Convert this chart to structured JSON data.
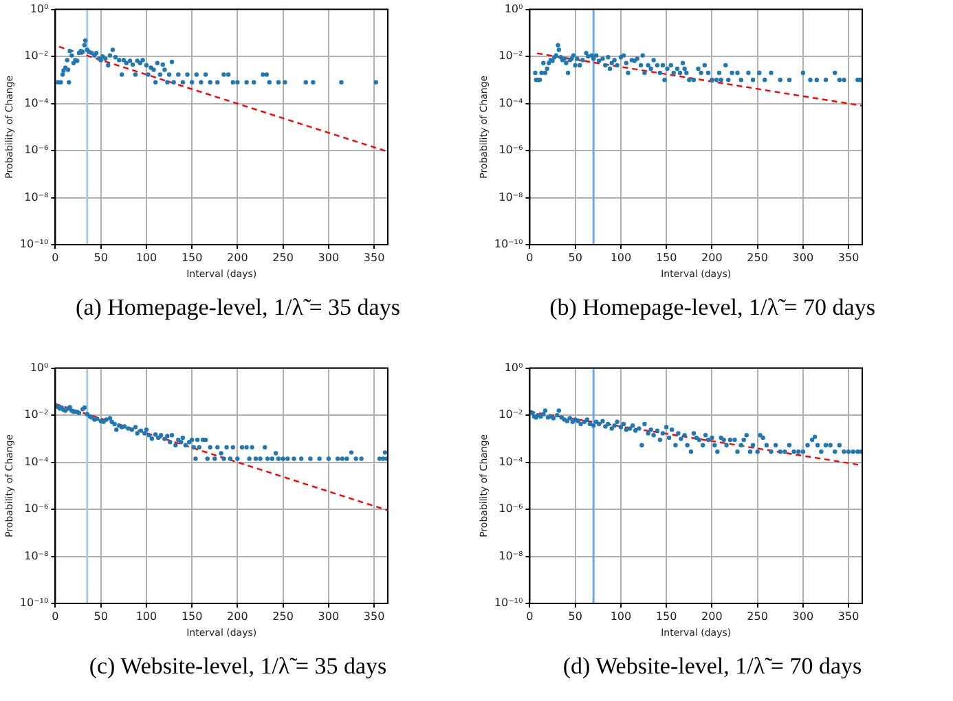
{
  "chart_data": [
    {
      "type": "scatter",
      "title": "(a) Homepage-level, 1/λ̃ = 35 days",
      "xlabel": "Interval (days)",
      "ylabel": "Probability of Change",
      "log": "y",
      "grid": true,
      "xlim": [
        0,
        365
      ],
      "xticks": [
        0,
        50,
        100,
        150,
        200,
        250,
        300,
        350
      ],
      "ylim": [
        1e-10,
        1
      ],
      "yticks": [
        {
          "value": 1e-10,
          "label": "10⁻¹⁰"
        },
        {
          "value": 1e-08,
          "label": "10⁻⁸"
        },
        {
          "value": 1e-06,
          "label": "10⁻⁶"
        },
        {
          "value": 0.0001,
          "label": "10⁻⁴"
        },
        {
          "value": 0.01,
          "label": "10⁻²"
        },
        {
          "value": 1,
          "label": "10⁰"
        }
      ],
      "ref_lines": [
        {
          "axis": "x",
          "value": 35,
          "color": "#a6cbe3"
        }
      ],
      "series": [
        {
          "type": "scatter",
          "color": "#1f77b4",
          "marker": "circle",
          "x": [
            3,
            6,
            8,
            9,
            11,
            13,
            14,
            15,
            16,
            18,
            20,
            22,
            24,
            26,
            28,
            30,
            32,
            33,
            35,
            37,
            40,
            43,
            45,
            48,
            50,
            52,
            55,
            58,
            60,
            63,
            66,
            70,
            73,
            75,
            78,
            82,
            85,
            88,
            90,
            93,
            96,
            100,
            102,
            105,
            108,
            110,
            112,
            115,
            118,
            120,
            123,
            125,
            128,
            130,
            135,
            140,
            145,
            150,
            155,
            160,
            165,
            170,
            178,
            185,
            190,
            195,
            200,
            210,
            218,
            228,
            232,
            235,
            245,
            252,
            275,
            283,
            314,
            352
          ],
          "values": [
            0.0008,
            0.0008,
            0.0017,
            0.0025,
            0.0033,
            0.007,
            0.0027,
            0.0008,
            0.017,
            0.011,
            0.0052,
            0.007,
            0.0065,
            0.014,
            0.017,
            0.0155,
            0.03,
            0.047,
            0.019,
            0.0155,
            0.014,
            0.011,
            0.014,
            0.008,
            0.007,
            0.01,
            0.008,
            0.0042,
            0.011,
            0.019,
            0.0092,
            0.007,
            0.0017,
            0.007,
            0.0052,
            0.0065,
            0.0045,
            0.0017,
            0.0065,
            0.0052,
            0.007,
            0.0042,
            0.0017,
            0.0033,
            0.0027,
            0.0008,
            0.0052,
            0.0017,
            0.0045,
            0.0027,
            0.0008,
            0.0017,
            0.0059,
            0.0008,
            0.0017,
            0.0008,
            0.0017,
            0.0008,
            0.0017,
            0.0008,
            0.0017,
            0.0008,
            0.0008,
            0.0017,
            0.0017,
            0.0008,
            0.0008,
            0.0008,
            0.0008,
            0.0017,
            0.0017,
            0.0008,
            0.0008,
            0.0008,
            0.0008,
            0.0008,
            0.0008,
            0.0008
          ]
        },
        {
          "type": "line",
          "color": "#ff0000",
          "line_style": "dashed",
          "marker": "none",
          "x": [
            4,
            365
          ],
          "values": [
            0.026,
            9e-07
          ]
        }
      ]
    },
    {
      "type": "scatter",
      "title": "(b) Homepage-level, 1/λ̃ = 70 days",
      "xlabel": "Interval (days)",
      "ylabel": "Probability of Change",
      "log": "y",
      "grid": true,
      "xlim": [
        0,
        365
      ],
      "xticks": [
        0,
        50,
        100,
        150,
        200,
        250,
        300,
        350
      ],
      "ylim": [
        1e-10,
        1
      ],
      "yticks": [
        {
          "value": 1e-10,
          "label": "10⁻¹⁰"
        },
        {
          "value": 1e-08,
          "label": "10⁻⁸"
        },
        {
          "value": 1e-06,
          "label": "10⁻⁶"
        },
        {
          "value": 0.0001,
          "label": "10⁻⁴"
        },
        {
          "value": 0.01,
          "label": "10⁻²"
        },
        {
          "value": 1,
          "label": "10⁰"
        }
      ],
      "ref_lines": [
        {
          "axis": "x",
          "value": 70,
          "color": "#6fa8dc"
        }
      ],
      "series": [
        {
          "type": "scatter",
          "color": "#1f77b4",
          "marker": "circle",
          "x": [
            6,
            7,
            9,
            11,
            13,
            15,
            17,
            19,
            21,
            23,
            25,
            27,
            29,
            31,
            32,
            34,
            36,
            38,
            40,
            42,
            44,
            46,
            48,
            50,
            52,
            55,
            58,
            62,
            64,
            68,
            70,
            73,
            76,
            80,
            83,
            86,
            88,
            90,
            93,
            96,
            100,
            103,
            106,
            108,
            112,
            115,
            118,
            122,
            124,
            126,
            130,
            133,
            136,
            140,
            143,
            146,
            148,
            151,
            155,
            158,
            162,
            165,
            168,
            170,
            172,
            175,
            180,
            185,
            188,
            192,
            196,
            200,
            205,
            208,
            210,
            215,
            218,
            222,
            228,
            232,
            240,
            245,
            252,
            258,
            265,
            275,
            285,
            300,
            308,
            315,
            325,
            335,
            340,
            345,
            360,
            363
          ],
          "values": [
            0.002,
            0.001,
            0.001,
            0.001,
            0.002,
            0.0052,
            0.002,
            0.003,
            0.0052,
            0.007,
            0.0065,
            0.0092,
            0.011,
            0.03,
            0.019,
            0.0092,
            0.007,
            0.008,
            0.0052,
            0.002,
            0.007,
            0.008,
            0.011,
            0.0042,
            0.008,
            0.0042,
            0.007,
            0.014,
            0.01,
            0.011,
            0.008,
            0.011,
            0.0065,
            0.008,
            0.0042,
            0.0092,
            0.003,
            0.0052,
            0.007,
            0.0042,
            0.0092,
            0.011,
            0.0052,
            0.002,
            0.007,
            0.0065,
            0.008,
            0.0042,
            0.011,
            0.002,
            0.0042,
            0.003,
            0.007,
            0.0042,
            0.002,
            0.0042,
            0.001,
            0.003,
            0.0042,
            0.002,
            0.003,
            0.002,
            0.0052,
            0.003,
            0.002,
            0.001,
            0.001,
            0.003,
            0.002,
            0.0042,
            0.002,
            0.001,
            0.001,
            0.002,
            0.001,
            0.0042,
            0.001,
            0.002,
            0.002,
            0.001,
            0.002,
            0.001,
            0.002,
            0.001,
            0.002,
            0.001,
            0.001,
            0.002,
            0.001,
            0.001,
            0.001,
            0.002,
            0.001,
            0.001,
            0.001,
            0.001
          ]
        },
        {
          "type": "line",
          "color": "#ff0000",
          "line_style": "dashed",
          "marker": "none",
          "x": [
            8,
            365
          ],
          "values": [
            0.0135,
            8e-05
          ]
        }
      ]
    },
    {
      "type": "scatter",
      "title": "(c) Website-level, 1/λ̃ = 35 days",
      "xlabel": "Interval (days)",
      "ylabel": "Probability of Change",
      "log": "y",
      "grid": true,
      "xlim": [
        0,
        365
      ],
      "xticks": [
        0,
        50,
        100,
        150,
        200,
        250,
        300,
        350
      ],
      "ylim": [
        1e-10,
        1
      ],
      "yticks": [
        {
          "value": 1e-10,
          "label": "10⁻¹⁰"
        },
        {
          "value": 1e-08,
          "label": "10⁻⁸"
        },
        {
          "value": 1e-06,
          "label": "10⁻⁶"
        },
        {
          "value": 0.0001,
          "label": "10⁻⁴"
        },
        {
          "value": 0.01,
          "label": "10⁻²"
        },
        {
          "value": 1,
          "label": "10⁰"
        }
      ],
      "ref_lines": [
        {
          "axis": "x",
          "value": 35,
          "color": "#a6cbe3"
        }
      ],
      "series": [
        {
          "type": "scatter",
          "color": "#1f77b4",
          "marker": "circle",
          "x": [
            1,
            3,
            5,
            7,
            9,
            11,
            14,
            16,
            18,
            20,
            23,
            26,
            30,
            32,
            35,
            38,
            40,
            43,
            46,
            50,
            53,
            56,
            60,
            62,
            65,
            67,
            70,
            73,
            76,
            80,
            84,
            88,
            90,
            94,
            98,
            100,
            103,
            106,
            110,
            113,
            116,
            120,
            123,
            126,
            128,
            132,
            135,
            138,
            140,
            143,
            147,
            150,
            152,
            154,
            156,
            158,
            162,
            165,
            167,
            170,
            175,
            178,
            182,
            185,
            188,
            192,
            195,
            200,
            205,
            210,
            213,
            216,
            220,
            225,
            230,
            233,
            238,
            242,
            245,
            250,
            255,
            262,
            270,
            280,
            290,
            300,
            310,
            315,
            320,
            325,
            330,
            336,
            356,
            360,
            362,
            364
          ],
          "values": [
            0.024,
            0.022,
            0.019,
            0.021,
            0.017,
            0.0155,
            0.019,
            0.022,
            0.0155,
            0.014,
            0.014,
            0.0125,
            0.018,
            0.021,
            0.011,
            0.0088,
            0.008,
            0.0065,
            0.007,
            0.0056,
            0.0052,
            0.0065,
            0.0074,
            0.0052,
            0.0042,
            0.0024,
            0.0036,
            0.0031,
            0.0033,
            0.0027,
            0.0024,
            0.0031,
            0.0017,
            0.0022,
            0.0017,
            0.0024,
            0.0014,
            0.001,
            0.0015,
            0.0011,
            0.0014,
            0.00098,
            0.0013,
            0.00072,
            0.0014,
            0.00053,
            0.0009,
            0.00072,
            0.0011,
            0.00053,
            0.00072,
            0.0009,
            0.00043,
            0.00014,
            0.0009,
            0.00043,
            0.0009,
            0.0009,
            0.00014,
            0.00043,
            0.00014,
            0.00043,
            0.00024,
            0.00014,
            0.00043,
            0.00014,
            0.00043,
            0.00014,
            0.00043,
            0.00043,
            0.00014,
            0.00043,
            0.00014,
            0.00014,
            0.00043,
            0.00014,
            0.00014,
            0.00024,
            0.00014,
            0.00014,
            0.00014,
            0.00014,
            0.00014,
            0.00014,
            0.00014,
            0.00014,
            0.00014,
            0.00014,
            0.00014,
            0.00026,
            0.00014,
            0.00014,
            0.00014,
            0.00014,
            0.00026,
            0.00014
          ]
        },
        {
          "type": "line",
          "color": "#ff0000",
          "line_style": "dashed",
          "marker": "none",
          "x": [
            0,
            365
          ],
          "values": [
            0.03,
            9e-07
          ]
        }
      ]
    },
    {
      "type": "scatter",
      "title": "(d) Website-level, 1/λ̃ = 70 days",
      "xlabel": "Interval (days)",
      "ylabel": "Probability of Change",
      "log": "y",
      "grid": true,
      "xlim": [
        0,
        365
      ],
      "xticks": [
        0,
        50,
        100,
        150,
        200,
        250,
        300,
        350
      ],
      "ylim": [
        1e-10,
        1
      ],
      "yticks": [
        {
          "value": 1e-10,
          "label": "10⁻¹⁰"
        },
        {
          "value": 1e-08,
          "label": "10⁻⁸"
        },
        {
          "value": 1e-06,
          "label": "10⁻⁶"
        },
        {
          "value": 0.0001,
          "label": "10⁻⁴"
        },
        {
          "value": 0.01,
          "label": "10⁻²"
        },
        {
          "value": 1,
          "label": "10⁰"
        }
      ],
      "ref_lines": [
        {
          "axis": "x",
          "value": 70,
          "color": "#6fa8dc"
        }
      ],
      "series": [
        {
          "type": "scatter",
          "color": "#1f77b4",
          "marker": "circle",
          "x": [
            1,
            3,
            5,
            7,
            9,
            12,
            15,
            17,
            20,
            23,
            26,
            30,
            32,
            35,
            38,
            41,
            44,
            47,
            50,
            53,
            56,
            60,
            63,
            66,
            70,
            73,
            76,
            80,
            83,
            86,
            90,
            93,
            96,
            100,
            103,
            106,
            110,
            113,
            116,
            120,
            123,
            126,
            130,
            133,
            136,
            140,
            143,
            146,
            150,
            153,
            156,
            160,
            163,
            166,
            170,
            173,
            177,
            180,
            183,
            186,
            190,
            193,
            196,
            200,
            203,
            206,
            210,
            213,
            216,
            220,
            225,
            228,
            232,
            235,
            238,
            242,
            245,
            250,
            253,
            256,
            260,
            265,
            270,
            275,
            280,
            285,
            290,
            295,
            300,
            305,
            310,
            313,
            316,
            320,
            325,
            330,
            335,
            340,
            345,
            350,
            355,
            360,
            364
          ],
          "values": [
            0.0135,
            0.0125,
            0.0088,
            0.008,
            0.01,
            0.0088,
            0.011,
            0.0155,
            0.008,
            0.0088,
            0.0074,
            0.01,
            0.0155,
            0.008,
            0.0065,
            0.0056,
            0.0074,
            0.0052,
            0.0065,
            0.0056,
            0.0042,
            0.0052,
            0.0065,
            0.0042,
            0.0036,
            0.0052,
            0.0042,
            0.0056,
            0.0033,
            0.0042,
            0.0027,
            0.0036,
            0.0052,
            0.0031,
            0.0042,
            0.0024,
            0.0027,
            0.0036,
            0.0022,
            0.0027,
            0.00053,
            0.0042,
            0.0017,
            0.0024,
            0.0014,
            0.0022,
            0.0009,
            0.0017,
            0.0031,
            0.0011,
            0.0024,
            0.00053,
            0.0017,
            0.00098,
            0.0014,
            0.00053,
            0.00028,
            0.0017,
            0.0011,
            0.0009,
            0.00053,
            0.0014,
            0.0009,
            0.0011,
            0.00053,
            0.00028,
            0.0011,
            0.0009,
            0.00053,
            0.0009,
            0.0009,
            0.00028,
            0.00053,
            0.0009,
            0.0014,
            0.00028,
            0.00053,
            0.00028,
            0.0014,
            0.0011,
            0.00053,
            0.00028,
            0.00053,
            0.00028,
            0.00028,
            0.00053,
            0.00028,
            0.00028,
            0.00028,
            0.00053,
            0.0009,
            0.0012,
            0.00053,
            0.00028,
            0.00053,
            0.00053,
            0.00028,
            0.00053,
            0.00028,
            0.00028,
            0.00028,
            0.00028,
            0.00028
          ]
        },
        {
          "type": "line",
          "color": "#ff0000",
          "line_style": "dashed",
          "marker": "none",
          "x": [
            0,
            365
          ],
          "values": [
            0.014,
            7.4e-05
          ]
        }
      ]
    }
  ]
}
